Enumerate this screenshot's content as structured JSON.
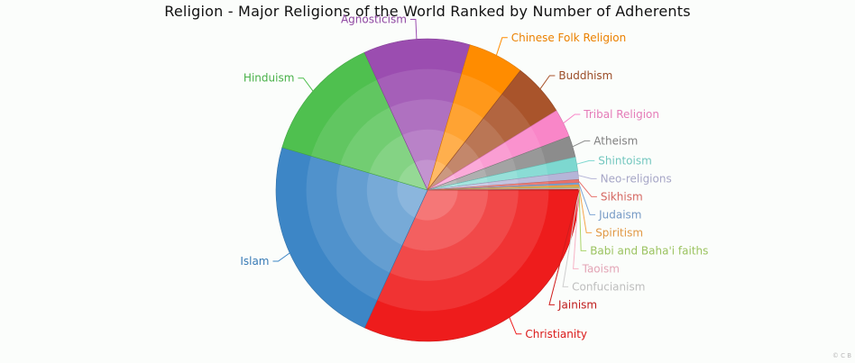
{
  "chart_data": {
    "type": "pie",
    "title": "Religion - Major Religions of the World Ranked by Number of Adherents",
    "slices": [
      {
        "label": "Christianity",
        "value": 2100,
        "color": "#ee1c1c"
      },
      {
        "label": "Islam",
        "value": 1500,
        "color": "#3d86c6"
      },
      {
        "label": "Hinduism",
        "value": 900,
        "color": "#4fc04f"
      },
      {
        "label": "Agnosticism",
        "value": 750,
        "color": "#9b4db0"
      },
      {
        "label": "Chinese Folk Religion",
        "value": 394,
        "color": "#ff8c00"
      },
      {
        "label": "Buddhism",
        "value": 376,
        "color": "#a9542b"
      },
      {
        "label": "Tribal Religion",
        "value": 200,
        "color": "#f986c8"
      },
      {
        "label": "Atheism",
        "value": 150,
        "color": "#8c8c8c"
      },
      {
        "label": "Shintoism",
        "value": 100,
        "color": "#7dd8d0"
      },
      {
        "label": "Neo-religions",
        "value": 58,
        "color": "#b5b5d8"
      },
      {
        "label": "Sikhism",
        "value": 23,
        "color": "#e8716b"
      },
      {
        "label": "Judaism",
        "value": 14,
        "color": "#7fa6d6"
      },
      {
        "label": "Spiritism",
        "value": 15,
        "color": "#f5a54a"
      },
      {
        "label": "Babi and Baha'i faiths",
        "value": 7,
        "color": "#a9d468"
      },
      {
        "label": "Taoism",
        "value": 5,
        "color": "#f7b3c6"
      },
      {
        "label": "Confucianism",
        "value": 5,
        "color": "#cfcfcf"
      },
      {
        "label": "Jainism",
        "value": 4,
        "color": "#d01c1c"
      }
    ]
  },
  "copyright": "© C B"
}
